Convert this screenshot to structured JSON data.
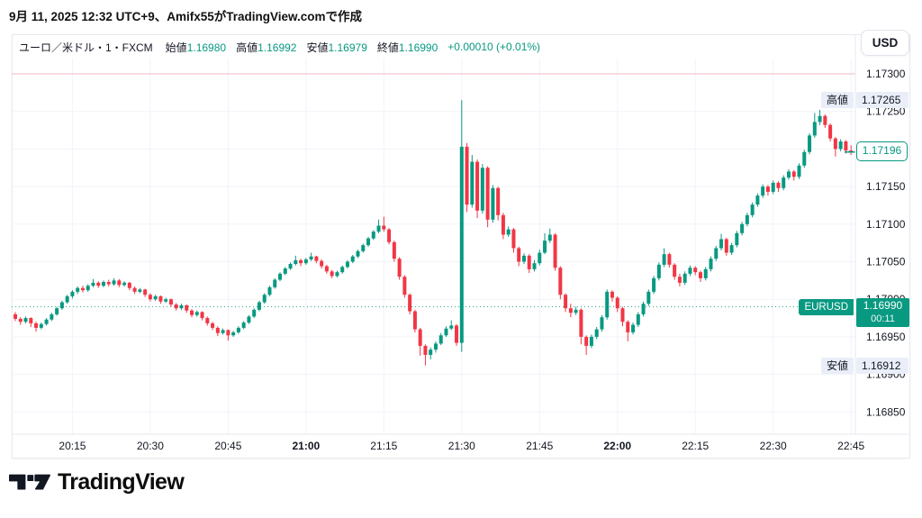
{
  "header": {
    "prefix": "9月 11, 2025 12:32 UTC+9、Amifx55が",
    "brand": "TradingView.com",
    "suffix": "で作成"
  },
  "legend": {
    "symbol": "ユーロ／米ドル・1・FXCM",
    "fields": [
      {
        "label": "始値",
        "value": "1.16980"
      },
      {
        "label": "高値",
        "value": "1.16992"
      },
      {
        "label": "安値",
        "value": "1.16979"
      },
      {
        "label": "終値",
        "value": "1.16990"
      }
    ],
    "change": "+0.00010 (+0.01%)"
  },
  "currency_button": {
    "label": "USD"
  },
  "markers": {
    "high": {
      "label": "高値",
      "value": "1.17265"
    },
    "low": {
      "label": "安値",
      "value": "1.16912"
    },
    "symbol": {
      "label": "EURUSD",
      "price": "1.16990",
      "countdown": "00:11"
    },
    "last": {
      "price": "1.17196"
    }
  },
  "logo": {
    "text": "TradingView"
  },
  "chart_data": {
    "type": "candlestick",
    "symbol": "EURUSD",
    "interval": "1 minute",
    "title": "ユーロ／米ドル・1・FXCM",
    "up_color": "#089981",
    "down_color": "#f23645",
    "grid_color": "#f0f3fa",
    "axis_text_color": "#131722",
    "red_line_price": 1.173,
    "current_price_line": 1.1699,
    "session_high": 1.17265,
    "session_low": 1.16912,
    "last_close": 1.17196,
    "y_axis_range": [
      1.1682,
      1.1732
    ],
    "y_ticks": [
      "1.17300",
      "1.17250",
      "1.17150",
      "1.17100",
      "1.17050",
      "1.17000",
      "1.16950",
      "1.16900",
      "1.16850"
    ],
    "y_gridlines": [
      1.173,
      1.1725,
      1.172,
      1.1715,
      1.171,
      1.1705,
      1.17,
      1.1695,
      1.169,
      1.1685
    ],
    "x_ticks": [
      {
        "label": "20:15",
        "bold": false
      },
      {
        "label": "20:30",
        "bold": false
      },
      {
        "label": "20:45",
        "bold": false
      },
      {
        "label": "21:00",
        "bold": true
      },
      {
        "label": "21:15",
        "bold": false
      },
      {
        "label": "21:30",
        "bold": false
      },
      {
        "label": "21:45",
        "bold": false
      },
      {
        "label": "22:00",
        "bold": true
      },
      {
        "label": "22:15",
        "bold": false
      },
      {
        "label": "22:30",
        "bold": false
      },
      {
        "label": "22:45",
        "bold": false
      }
    ],
    "start_time": "20:04",
    "interval_min": 1,
    "price_base": 1.16,
    "pip_unit": 1e-05,
    "candles_format": "[open,high,low,close] in pips above price_base",
    "candles": [
      [
        980,
        983,
        971,
        974
      ],
      [
        974,
        976,
        966,
        970
      ],
      [
        970,
        977,
        968,
        975
      ],
      [
        975,
        976,
        963,
        968
      ],
      [
        968,
        970,
        957,
        962
      ],
      [
        962,
        969,
        960,
        967
      ],
      [
        967,
        975,
        965,
        973
      ],
      [
        973,
        982,
        971,
        980
      ],
      [
        980,
        990,
        978,
        988
      ],
      [
        988,
        998,
        986,
        996
      ],
      [
        996,
        1006,
        994,
        1004
      ],
      [
        1004,
        1012,
        1001,
        1010
      ],
      [
        1010,
        1017,
        1007,
        1015
      ],
      [
        1015,
        1018,
        1009,
        1012
      ],
      [
        1012,
        1020,
        1010,
        1018
      ],
      [
        1018,
        1027,
        1016,
        1022
      ],
      [
        1022,
        1024,
        1015,
        1018
      ],
      [
        1018,
        1025,
        1016,
        1023
      ],
      [
        1023,
        1026,
        1017,
        1020
      ],
      [
        1020,
        1028,
        1018,
        1025
      ],
      [
        1025,
        1027,
        1016,
        1019
      ],
      [
        1019,
        1024,
        1017,
        1022
      ],
      [
        1022,
        1023,
        1012,
        1015
      ],
      [
        1015,
        1017,
        1007,
        1010
      ],
      [
        1010,
        1015,
        1008,
        1013
      ],
      [
        1013,
        1014,
        1003,
        1006
      ],
      [
        1006,
        1008,
        997,
        1000
      ],
      [
        1000,
        1006,
        998,
        1004
      ],
      [
        1004,
        1005,
        994,
        997
      ],
      [
        997,
        1002,
        995,
        1000
      ],
      [
        1000,
        1001,
        990,
        993
      ],
      [
        993,
        995,
        985,
        988
      ],
      [
        988,
        994,
        986,
        992
      ],
      [
        992,
        993,
        982,
        985
      ],
      [
        985,
        987,
        976,
        979
      ],
      [
        979,
        985,
        977,
        983
      ],
      [
        983,
        984,
        972,
        975
      ],
      [
        975,
        977,
        965,
        968
      ],
      [
        968,
        970,
        959,
        962
      ],
      [
        962,
        964,
        951,
        955
      ],
      [
        955,
        961,
        953,
        959
      ],
      [
        959,
        960,
        945,
        952
      ],
      [
        952,
        958,
        950,
        956
      ],
      [
        956,
        964,
        954,
        962
      ],
      [
        962,
        971,
        960,
        969
      ],
      [
        969,
        979,
        967,
        977
      ],
      [
        977,
        988,
        975,
        986
      ],
      [
        986,
        998,
        984,
        996
      ],
      [
        996,
        1008,
        994,
        1006
      ],
      [
        1006,
        1018,
        1004,
        1016
      ],
      [
        1016,
        1028,
        1014,
        1026
      ],
      [
        1026,
        1036,
        1024,
        1034
      ],
      [
        1034,
        1043,
        1032,
        1041
      ],
      [
        1041,
        1049,
        1039,
        1047
      ],
      [
        1047,
        1058,
        1045,
        1052
      ],
      [
        1052,
        1054,
        1044,
        1048
      ],
      [
        1048,
        1055,
        1046,
        1053
      ],
      [
        1053,
        1062,
        1051,
        1057
      ],
      [
        1057,
        1058,
        1048,
        1051
      ],
      [
        1051,
        1053,
        1041,
        1044
      ],
      [
        1044,
        1046,
        1034,
        1037
      ],
      [
        1037,
        1039,
        1028,
        1031
      ],
      [
        1031,
        1038,
        1029,
        1036
      ],
      [
        1036,
        1045,
        1034,
        1043
      ],
      [
        1043,
        1052,
        1041,
        1050
      ],
      [
        1050,
        1059,
        1048,
        1057
      ],
      [
        1057,
        1066,
        1055,
        1064
      ],
      [
        1064,
        1074,
        1062,
        1072
      ],
      [
        1072,
        1083,
        1070,
        1081
      ],
      [
        1081,
        1092,
        1079,
        1090
      ],
      [
        1090,
        1106,
        1088,
        1098
      ],
      [
        1098,
        1110,
        1090,
        1093
      ],
      [
        1093,
        1095,
        1073,
        1076
      ],
      [
        1076,
        1078,
        1050,
        1054
      ],
      [
        1054,
        1056,
        1026,
        1030
      ],
      [
        1030,
        1032,
        1002,
        1006
      ],
      [
        1006,
        1008,
        980,
        984
      ],
      [
        984,
        986,
        956,
        960
      ],
      [
        960,
        962,
        925,
        938
      ],
      [
        938,
        940,
        912,
        926
      ],
      [
        926,
        936,
        920,
        933
      ],
      [
        933,
        944,
        929,
        941
      ],
      [
        941,
        955,
        939,
        952
      ],
      [
        952,
        964,
        950,
        961
      ],
      [
        961,
        972,
        959,
        965
      ],
      [
        965,
        967,
        938,
        942
      ],
      [
        942,
        1265,
        930,
        1203
      ],
      [
        1203,
        1208,
        1116,
        1126
      ],
      [
        1126,
        1192,
        1122,
        1183
      ],
      [
        1183,
        1186,
        1108,
        1118
      ],
      [
        1118,
        1180,
        1114,
        1175
      ],
      [
        1175,
        1177,
        1096,
        1106
      ],
      [
        1106,
        1152,
        1102,
        1148
      ],
      [
        1148,
        1150,
        1105,
        1112
      ],
      [
        1112,
        1115,
        1080,
        1086
      ],
      [
        1086,
        1097,
        1083,
        1093
      ],
      [
        1093,
        1095,
        1062,
        1068
      ],
      [
        1068,
        1070,
        1044,
        1050
      ],
      [
        1050,
        1061,
        1047,
        1058
      ],
      [
        1058,
        1060,
        1035,
        1040
      ],
      [
        1040,
        1052,
        1037,
        1048
      ],
      [
        1048,
        1066,
        1045,
        1062
      ],
      [
        1062,
        1088,
        1060,
        1078
      ],
      [
        1078,
        1094,
        1075,
        1086
      ],
      [
        1086,
        1088,
        1038,
        1042
      ],
      [
        1042,
        1044,
        1000,
        1006
      ],
      [
        1006,
        1008,
        983,
        988
      ],
      [
        988,
        994,
        976,
        982
      ],
      [
        982,
        990,
        979,
        986
      ],
      [
        986,
        988,
        940,
        950
      ],
      [
        950,
        952,
        926,
        938
      ],
      [
        938,
        953,
        935,
        950
      ],
      [
        950,
        963,
        947,
        960
      ],
      [
        960,
        979,
        957,
        976
      ],
      [
        976,
        1013,
        973,
        1010
      ],
      [
        1010,
        1012,
        997,
        1002
      ],
      [
        1002,
        1004,
        983,
        988
      ],
      [
        988,
        990,
        964,
        970
      ],
      [
        970,
        972,
        944,
        956
      ],
      [
        956,
        969,
        953,
        966
      ],
      [
        966,
        983,
        963,
        980
      ],
      [
        980,
        997,
        977,
        994
      ],
      [
        994,
        1013,
        991,
        1010
      ],
      [
        1010,
        1031,
        1007,
        1028
      ],
      [
        1028,
        1049,
        1025,
        1046
      ],
      [
        1046,
        1068,
        1043,
        1060
      ],
      [
        1060,
        1062,
        1042,
        1046
      ],
      [
        1046,
        1048,
        1026,
        1030
      ],
      [
        1030,
        1034,
        1017,
        1022
      ],
      [
        1022,
        1037,
        1019,
        1034
      ],
      [
        1034,
        1045,
        1031,
        1042
      ],
      [
        1042,
        1044,
        1032,
        1036
      ],
      [
        1036,
        1038,
        1023,
        1028
      ],
      [
        1028,
        1043,
        1025,
        1040
      ],
      [
        1040,
        1057,
        1037,
        1054
      ],
      [
        1054,
        1071,
        1051,
        1068
      ],
      [
        1068,
        1087,
        1065,
        1080
      ],
      [
        1080,
        1082,
        1058,
        1062
      ],
      [
        1062,
        1075,
        1059,
        1072
      ],
      [
        1072,
        1091,
        1069,
        1088
      ],
      [
        1088,
        1103,
        1085,
        1100
      ],
      [
        1100,
        1115,
        1097,
        1112
      ],
      [
        1112,
        1129,
        1109,
        1126
      ],
      [
        1126,
        1141,
        1123,
        1138
      ],
      [
        1138,
        1153,
        1135,
        1150
      ],
      [
        1150,
        1152,
        1138,
        1143
      ],
      [
        1143,
        1158,
        1140,
        1155
      ],
      [
        1155,
        1157,
        1143,
        1148
      ],
      [
        1148,
        1165,
        1145,
        1162
      ],
      [
        1162,
        1173,
        1159,
        1170
      ],
      [
        1170,
        1172,
        1158,
        1163
      ],
      [
        1163,
        1181,
        1160,
        1178
      ],
      [
        1178,
        1199,
        1175,
        1196
      ],
      [
        1196,
        1221,
        1193,
        1218
      ],
      [
        1218,
        1248,
        1215,
        1236
      ],
      [
        1236,
        1252,
        1232,
        1244
      ],
      [
        1244,
        1246,
        1228,
        1232
      ],
      [
        1232,
        1234,
        1210,
        1214
      ],
      [
        1214,
        1216,
        1190,
        1200
      ],
      [
        1200,
        1213,
        1197,
        1210
      ],
      [
        1210,
        1212,
        1194,
        1198
      ],
      [
        1198,
        1205,
        1192,
        1196
      ]
    ]
  }
}
